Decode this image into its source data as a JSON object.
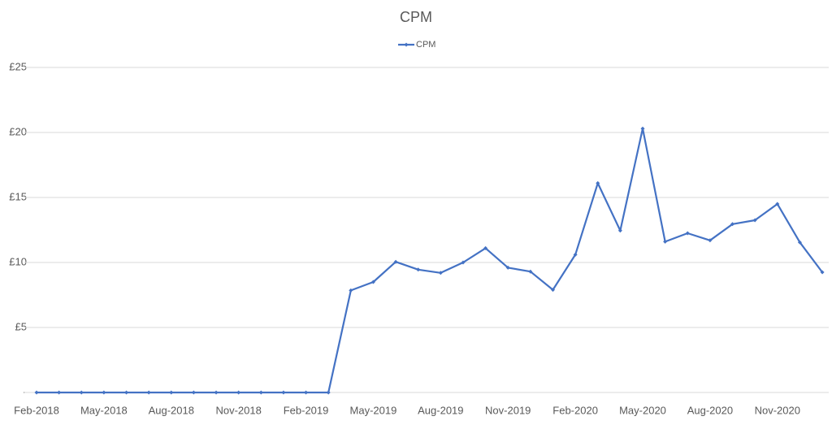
{
  "chart_data": {
    "type": "line",
    "title": "CPM",
    "categories": [
      "Feb-2018",
      null,
      null,
      "May-2018",
      null,
      null,
      "Aug-2018",
      null,
      null,
      "Nov-2018",
      null,
      null,
      "Feb-2019",
      null,
      null,
      "May-2019",
      null,
      null,
      "Aug-2019",
      null,
      null,
      "Nov-2019",
      null,
      null,
      "Feb-2020",
      null,
      null,
      "May-2020",
      null,
      null,
      "Aug-2020",
      null,
      null,
      "Nov-2020",
      null,
      null
    ],
    "series": [
      {
        "name": "CPM",
        "color": "#4472c4",
        "values": [
          0,
          0,
          0,
          0,
          0,
          0,
          0,
          0,
          0,
          0,
          0,
          0,
          0,
          0,
          7.85,
          8.5,
          10.05,
          9.45,
          9.2,
          10.0,
          11.1,
          9.6,
          9.3,
          7.9,
          10.6,
          16.1,
          12.45,
          20.3,
          11.6,
          12.25,
          11.7,
          12.95,
          13.25,
          14.5,
          11.55,
          9.25
        ]
      }
    ],
    "ylim": [
      0,
      25
    ],
    "yticks": [
      {
        "value": 0,
        "label": "-"
      },
      {
        "value": 5,
        "label": "£5"
      },
      {
        "value": 10,
        "label": "£10"
      },
      {
        "value": 15,
        "label": "£15"
      },
      {
        "value": 20,
        "label": "£20"
      },
      {
        "value": 25,
        "label": "£25"
      }
    ],
    "grid": true,
    "legend": "top"
  }
}
